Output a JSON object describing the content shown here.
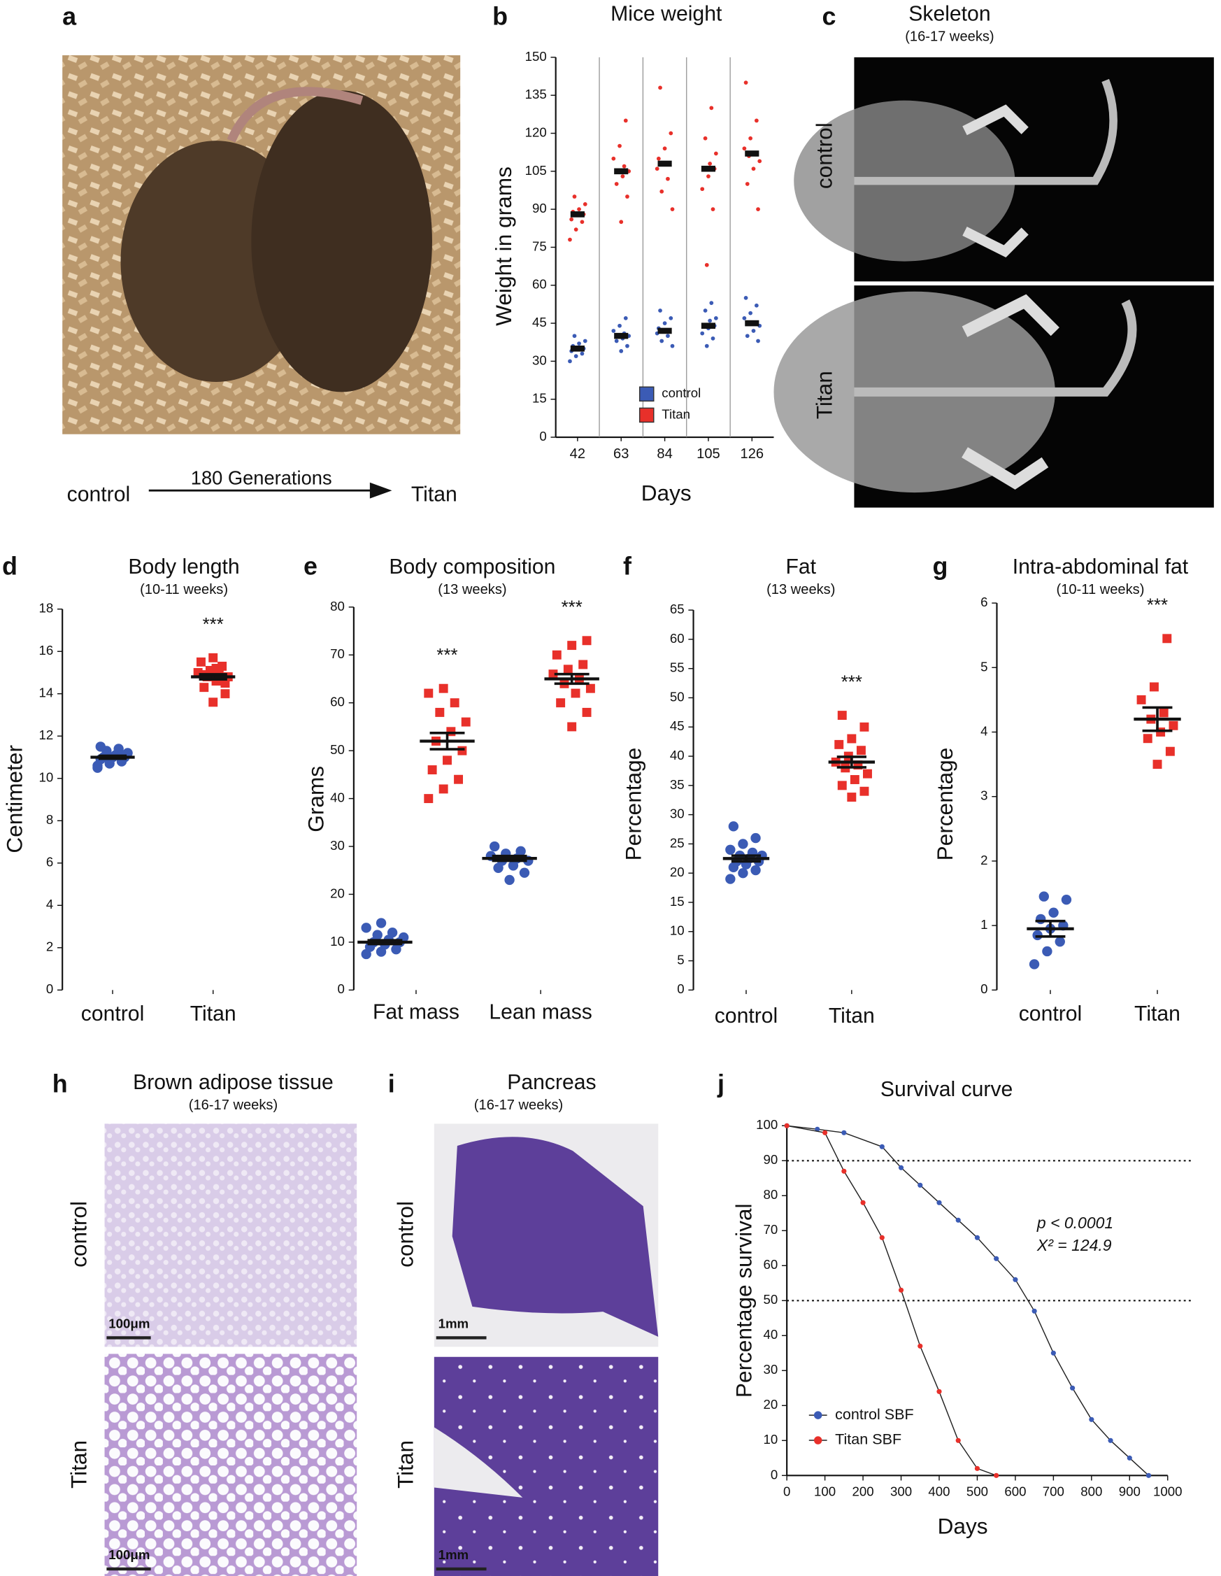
{
  "panel_a": {
    "panel_label": "a",
    "left_label": "control",
    "arrow_label": "180 Generations",
    "right_label": "Titan"
  },
  "panel_c": {
    "panel_label": "c",
    "title": "Skeleton",
    "subtitle": "(16-17 weeks)",
    "row_labels": [
      "control",
      "Titan"
    ]
  },
  "panel_h": {
    "panel_label": "h",
    "title": "Brown adipose tissue",
    "subtitle": "(16-17 weeks)",
    "row_labels": [
      "control",
      "Titan"
    ],
    "scale_bars": [
      "100μm",
      "100μm"
    ]
  },
  "panel_i": {
    "panel_label": "i",
    "title": "Pancreas",
    "subtitle": "(16-17 weeks)",
    "row_labels": [
      "control",
      "Titan"
    ],
    "scale_bars": [
      "1mm",
      "1mm"
    ]
  },
  "chart_data": [
    {
      "type": "strip",
      "panel_label": "b",
      "title": "Mice weight",
      "ylabel": "Weight in grams",
      "xlabel": "Days",
      "categories": [
        "42",
        "63",
        "84",
        "105",
        "126"
      ],
      "ylim": [
        0,
        150
      ],
      "yticks": [
        0,
        15,
        30,
        45,
        60,
        75,
        90,
        105,
        120,
        135,
        150
      ],
      "category_dividers": true,
      "legend": "lower center",
      "marker_size": "small",
      "series": [
        {
          "name": "control",
          "color": "#3b5bb5",
          "marker": "circle",
          "values": [
            35,
            40,
            42,
            44,
            45
          ],
          "points": [
            [
              30,
              32,
              33,
              34,
              35,
              35,
              36,
              37,
              38,
              40
            ],
            [
              34,
              36,
              38,
              39,
              40,
              40,
              41,
              42,
              44,
              47
            ],
            [
              36,
              38,
              40,
              41,
              42,
              42,
              43,
              45,
              47,
              50
            ],
            [
              36,
              39,
              41,
              43,
              44,
              44,
              46,
              47,
              50,
              53
            ],
            [
              38,
              40,
              42,
              44,
              45,
              45,
              47,
              49,
              52,
              55
            ]
          ]
        },
        {
          "name": "Titan",
          "color": "#e8302a",
          "marker": "circle",
          "values": [
            88,
            105,
            108,
            106,
            112
          ],
          "points": [
            [
              78,
              82,
              85,
              86,
              88,
              88,
              89,
              90,
              92,
              95
            ],
            [
              85,
              95,
              100,
              103,
              105,
              105,
              107,
              110,
              115,
              125
            ],
            [
              90,
              97,
              102,
              106,
              108,
              108,
              110,
              114,
              120,
              138
            ],
            [
              68,
              90,
              98,
              103,
              106,
              106,
              108,
              112,
              118,
              130
            ],
            [
              90,
              100,
              106,
              109,
              111,
              112,
              114,
              118,
              125,
              140
            ]
          ]
        }
      ]
    },
    {
      "type": "strip",
      "panel_label": "d",
      "title": "Body length",
      "subtitle": "(10-11 weeks)",
      "ylabel": "Centimeter",
      "categories": [
        "control",
        "Titan"
      ],
      "ylim": [
        0,
        18
      ],
      "yticks": [
        0,
        2,
        4,
        6,
        8,
        10,
        12,
        14,
        16,
        18
      ],
      "series": [
        {
          "color": "#3b5bb5",
          "marker": "circle",
          "values": [
            11.0,
            null
          ],
          "errors": [
            0.07,
            null
          ],
          "points": [
            [
              10.5,
              10.7,
              10.8,
              10.9,
              11.0,
              11.0,
              11.0,
              11.1,
              11.2,
              11.3,
              11.4,
              10.6,
              10.9,
              11.1,
              11.5
            ],
            null
          ]
        },
        {
          "color": "#e8302a",
          "marker": "square",
          "annotation": "***",
          "values": [
            null,
            14.8
          ],
          "errors": [
            null,
            0.12
          ],
          "points": [
            null,
            [
              13.6,
              14.0,
              14.3,
              14.6,
              14.8,
              14.8,
              14.9,
              15.0,
              15.1,
              15.3,
              15.5,
              15.7,
              14.5,
              14.9,
              15.2
            ]
          ]
        }
      ]
    },
    {
      "type": "strip",
      "panel_label": "e",
      "title": "Body composition",
      "subtitle": "(13 weeks)",
      "ylabel": "Grams",
      "categories": [
        "Fat mass",
        "Lean mass"
      ],
      "ylim": [
        0,
        80
      ],
      "yticks": [
        0,
        10,
        20,
        30,
        40,
        50,
        60,
        70,
        80
      ],
      "dodge": true,
      "series": [
        {
          "color": "#3b5bb5",
          "marker": "circle",
          "values": [
            10,
            27.5
          ],
          "errors": [
            0.4,
            0.5
          ],
          "points": [
            [
              7.5,
              8,
              8.5,
              9,
              9.5,
              10,
              10,
              10.5,
              11,
              11.5,
              12,
              13,
              14
            ],
            [
              23,
              24.5,
              25.5,
              26,
              27,
              27,
              27.5,
              28,
              28.5,
              29,
              30
            ]
          ]
        },
        {
          "color": "#e8302a",
          "marker": "square",
          "annotation": "***",
          "values": [
            52,
            65
          ],
          "errors": [
            1.7,
            1.0
          ],
          "points": [
            [
              40,
              42,
              44,
              46,
              48,
              50,
              52,
              54,
              56,
              58,
              60,
              62,
              63
            ],
            [
              55,
              58,
              60,
              62,
              63,
              64,
              65,
              66,
              67,
              68,
              70,
              72,
              73
            ]
          ]
        }
      ]
    },
    {
      "type": "strip",
      "panel_label": "f",
      "title": "Fat",
      "subtitle": "(13 weeks)",
      "ylabel": "Percentage",
      "categories": [
        "control",
        "Titan"
      ],
      "ylim": [
        0,
        65
      ],
      "yticks": [
        0,
        5,
        10,
        15,
        20,
        25,
        30,
        35,
        40,
        45,
        50,
        55,
        60,
        65
      ],
      "series": [
        {
          "color": "#3b5bb5",
          "marker": "circle",
          "values": [
            22.5,
            null
          ],
          "errors": [
            0.5,
            null
          ],
          "points": [
            [
              19,
              20,
              20.5,
              21,
              21.5,
              22,
              22,
              22.5,
              23,
              23,
              23.5,
              24,
              25,
              26,
              28
            ],
            null
          ]
        },
        {
          "color": "#e8302a",
          "marker": "square",
          "annotation": "***",
          "values": [
            null,
            39
          ],
          "errors": [
            null,
            0.9
          ],
          "points": [
            null,
            [
              33,
              34,
              35,
              36,
              37,
              38,
              38.5,
              39,
              40,
              41,
              42,
              43,
              45,
              47
            ]
          ]
        }
      ]
    },
    {
      "type": "strip",
      "panel_label": "g",
      "title": "Intra-abdominal fat",
      "subtitle": "(10-11 weeks)",
      "ylabel": "Percentage",
      "categories": [
        "control",
        "Titan"
      ],
      "ylim": [
        0,
        6
      ],
      "yticks": [
        0,
        1,
        2,
        3,
        4,
        5,
        6
      ],
      "series": [
        {
          "color": "#3b5bb5",
          "marker": "circle",
          "values": [
            0.95,
            null
          ],
          "errors": [
            0.12,
            null
          ],
          "points": [
            [
              0.4,
              0.6,
              0.75,
              0.85,
              0.95,
              1.0,
              1.1,
              1.2,
              1.4,
              1.45
            ],
            null
          ]
        },
        {
          "color": "#e8302a",
          "marker": "square",
          "annotation": "***",
          "values": [
            null,
            4.2
          ],
          "errors": [
            null,
            0.18
          ],
          "points": [
            null,
            [
              3.5,
              3.7,
              3.9,
              4.0,
              4.1,
              4.2,
              4.3,
              4.5,
              4.7,
              5.45
            ]
          ]
        }
      ]
    },
    {
      "type": "line",
      "panel_label": "j",
      "title": "Survival curve",
      "xlabel": "Days",
      "ylabel": "Percentage survival",
      "xlim": [
        0,
        1000
      ],
      "xticks": [
        0,
        100,
        200,
        300,
        400,
        500,
        600,
        700,
        800,
        900,
        1000
      ],
      "ylim": [
        0,
        100
      ],
      "yticks": [
        0,
        10,
        20,
        30,
        40,
        50,
        60,
        70,
        80,
        90,
        100
      ],
      "hlines": [
        90,
        50
      ],
      "annotations": [
        "p < 0.0001",
        "X² = 124.9"
      ],
      "legend": "lower left",
      "series": [
        {
          "name": "control SBF",
          "color": "#3b5bb5",
          "x": [
            0,
            80,
            150,
            250,
            300,
            350,
            400,
            450,
            500,
            550,
            600,
            650,
            700,
            750,
            800,
            850,
            900,
            950
          ],
          "values": [
            100,
            99,
            98,
            94,
            88,
            83,
            78,
            73,
            68,
            62,
            56,
            47,
            35,
            25,
            16,
            10,
            5,
            0
          ]
        },
        {
          "name": "Titan SBF",
          "color": "#e8302a",
          "x": [
            0,
            100,
            150,
            200,
            250,
            300,
            350,
            400,
            450,
            500,
            550
          ],
          "values": [
            100,
            98,
            87,
            78,
            68,
            53,
            37,
            24,
            10,
            2,
            0
          ]
        }
      ]
    }
  ]
}
